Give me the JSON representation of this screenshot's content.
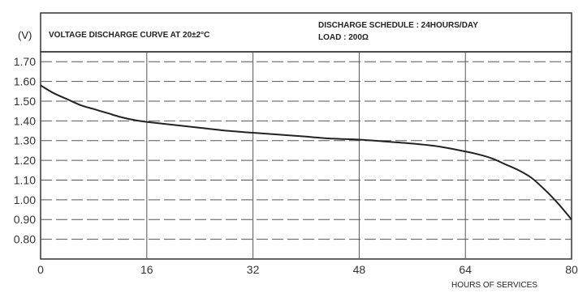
{
  "chart_data": {
    "type": "line",
    "title": "VOLTAGE DISCHARGE CURVE AT 20±2°C",
    "schedule": "DISCHARGE SCHEDULE : 24HOURS/DAY",
    "load": "LOAD : 200Ω",
    "ylabel": "(V)",
    "xlabel": "HOURS OF SERVICES",
    "xlim": [
      0,
      80
    ],
    "ylim": [
      0.7,
      1.75
    ],
    "x_ticks": [
      0,
      16,
      32,
      48,
      64,
      80
    ],
    "y_ticks": [
      0.8,
      0.9,
      1.0,
      1.1,
      1.2,
      1.3,
      1.4,
      1.5,
      1.6,
      1.7
    ],
    "x_tick_labels": [
      "0",
      "16",
      "32",
      "48",
      "64",
      "80"
    ],
    "y_tick_labels": [
      "0.80",
      "0.90",
      "1.00",
      "1.10",
      "1.20",
      "1.30",
      "1.40",
      "1.50",
      "1.60",
      "1.70"
    ],
    "grid": true,
    "series": [
      {
        "x": [
          0,
          2,
          4,
          6,
          8,
          10,
          12,
          14,
          16,
          20,
          24,
          28,
          32,
          36,
          40,
          44,
          48,
          52,
          56,
          60,
          64,
          66,
          68,
          70,
          72,
          74,
          76,
          78,
          80
        ],
        "y": [
          1.58,
          1.54,
          1.51,
          1.48,
          1.46,
          1.44,
          1.42,
          1.405,
          1.395,
          1.38,
          1.365,
          1.35,
          1.34,
          1.33,
          1.32,
          1.31,
          1.305,
          1.295,
          1.285,
          1.27,
          1.245,
          1.23,
          1.21,
          1.18,
          1.15,
          1.11,
          1.05,
          0.98,
          0.9
        ]
      }
    ]
  }
}
